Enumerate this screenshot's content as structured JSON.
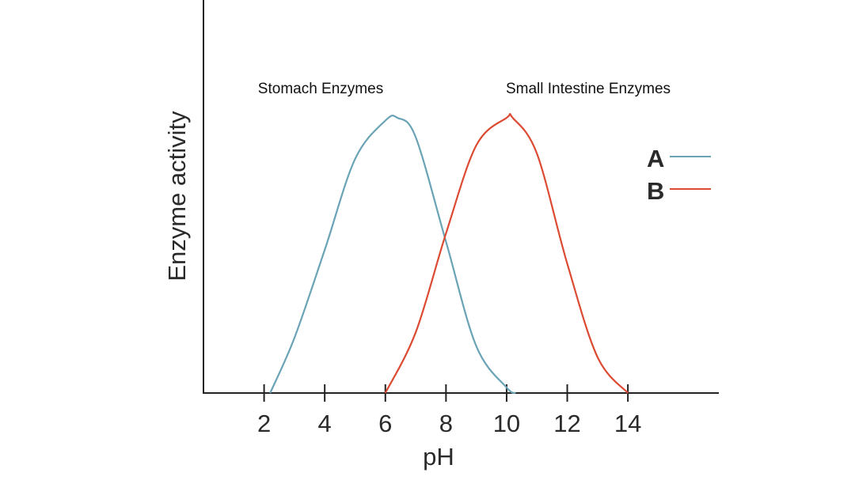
{
  "chart_data": {
    "type": "line",
    "title": "",
    "xlabel": "pH",
    "ylabel": "Enzyme activity",
    "xlim": [
      0,
      17
    ],
    "ylim": [
      0,
      1
    ],
    "xticks": [
      2,
      4,
      6,
      8,
      10,
      12,
      14
    ],
    "xtick_labels": [
      "2",
      "4",
      "6",
      "8",
      "10",
      "12",
      "14"
    ],
    "grid": false,
    "legend_position": "right",
    "series": [
      {
        "name": "A",
        "color": "#6aa3b6",
        "x": [
          2.2,
          3,
          4,
          5,
          6,
          6.4,
          7,
          8,
          9,
          10,
          10.3
        ],
        "y": [
          0,
          0.2,
          0.52,
          0.85,
          0.99,
          1.0,
          0.93,
          0.55,
          0.17,
          0.02,
          0
        ]
      },
      {
        "name": "B",
        "color": "#dd4a32",
        "x": [
          6,
          7,
          8,
          9,
          10,
          10.2,
          11,
          12,
          13,
          14
        ],
        "y": [
          0,
          0.22,
          0.58,
          0.9,
          1.0,
          1.0,
          0.87,
          0.47,
          0.13,
          0
        ]
      }
    ],
    "annotations": [
      {
        "text": "Stomach Enzymes",
        "x": 6.4,
        "y": 1.1
      },
      {
        "text": "Small Intestine Enzymes",
        "x": 10.3,
        "y": 1.1
      }
    ]
  }
}
